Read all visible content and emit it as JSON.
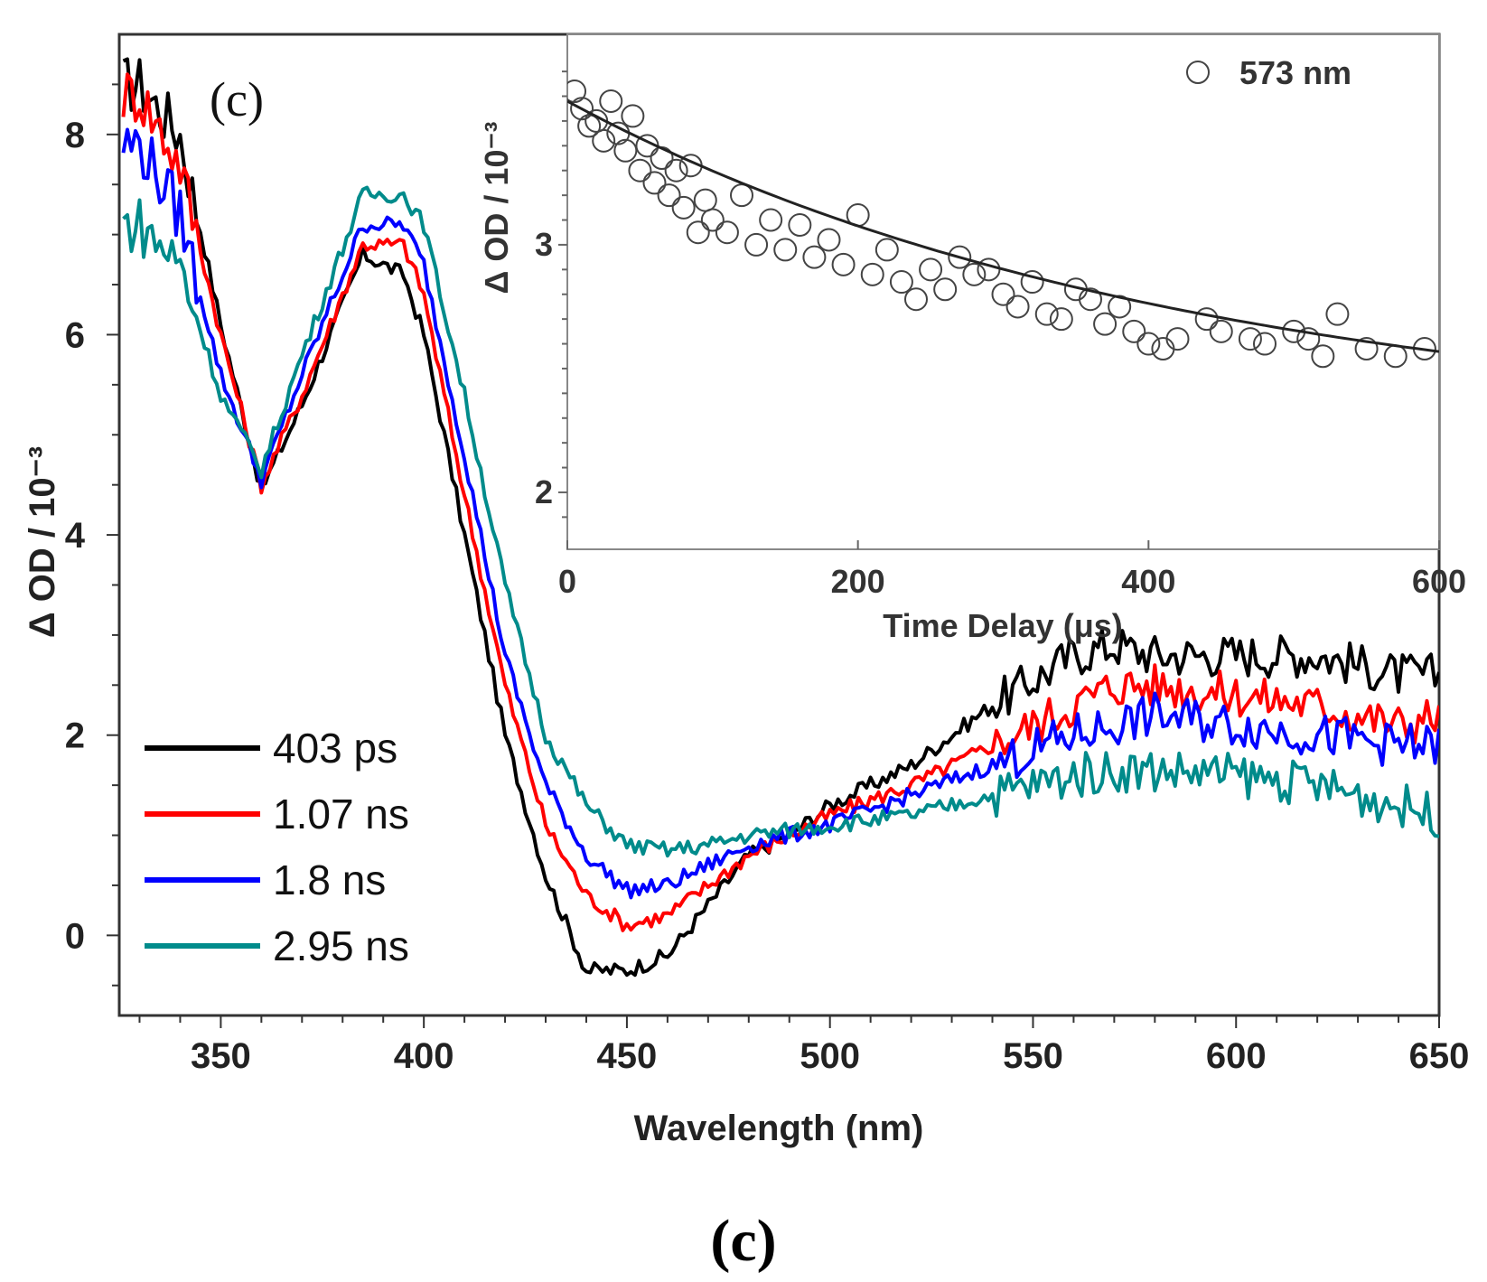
{
  "panel_label": "(c)",
  "caption": "(c)",
  "colors": {
    "403 ps": "#000000",
    "1.07 ns": "#ff0000",
    "1.8 ns": "#0000ff",
    "2.95 ns": "#008b8b",
    "fit": "#222222",
    "markers": "#444444"
  },
  "chart_data": [
    {
      "type": "line",
      "title": "",
      "xlabel": "Wavelength (nm)",
      "ylabel": "Δ OD / 10⁻³",
      "xlim": [
        325,
        650
      ],
      "ylim": [
        -0.8,
        9
      ],
      "xticks": [
        350,
        400,
        450,
        500,
        550,
        600,
        650
      ],
      "yticks": [
        0,
        2,
        4,
        6,
        8
      ],
      "x": [
        330,
        340,
        350,
        360,
        370,
        385,
        395,
        400,
        410,
        420,
        430,
        440,
        450,
        460,
        470,
        480,
        490,
        500,
        520,
        540,
        560,
        570,
        580,
        600,
        620,
        640,
        650
      ],
      "series": [
        {
          "name": "403 ps",
          "values": [
            8.5,
            8.0,
            6.1,
            4.45,
            5.3,
            6.8,
            6.6,
            6.0,
            4.0,
            2.0,
            0.6,
            -0.35,
            -0.35,
            -0.2,
            0.3,
            0.8,
            1.0,
            1.3,
            1.7,
            2.3,
            2.8,
            2.9,
            2.8,
            2.8,
            2.8,
            2.6,
            2.6
          ]
        },
        {
          "name": "1.07 ns",
          "values": [
            8.4,
            7.7,
            6.0,
            4.5,
            5.4,
            6.9,
            6.9,
            6.4,
            4.4,
            2.5,
            1.1,
            0.4,
            0.1,
            0.2,
            0.5,
            0.8,
            1.0,
            1.2,
            1.5,
            1.9,
            2.3,
            2.5,
            2.5,
            2.4,
            2.3,
            2.1,
            2.2
          ]
        },
        {
          "name": "1.8 ns",
          "values": [
            7.9,
            7.2,
            5.6,
            4.55,
            5.6,
            7.1,
            7.1,
            6.7,
            4.8,
            2.8,
            1.5,
            0.8,
            0.45,
            0.5,
            0.7,
            0.9,
            1.0,
            1.1,
            1.4,
            1.7,
            2.0,
            2.1,
            2.2,
            2.1,
            2.0,
            1.9,
            1.9
          ]
        },
        {
          "name": "2.95 ns",
          "values": [
            7.1,
            6.7,
            5.4,
            4.65,
            5.8,
            7.4,
            7.4,
            7.1,
            5.4,
            3.5,
            2.0,
            1.3,
            0.9,
            0.85,
            0.9,
            1.0,
            1.05,
            1.1,
            1.2,
            1.4,
            1.6,
            1.65,
            1.65,
            1.6,
            1.5,
            1.3,
            1.2
          ]
        }
      ],
      "legend": {
        "position": "bottom-left",
        "entries": [
          "403 ps",
          "1.07 ns",
          "1.8 ns",
          "2.95 ns"
        ]
      }
    },
    {
      "type": "scatter",
      "title": "",
      "xlabel": "Time Delay (μs)",
      "ylabel": "Δ OD / 10⁻³",
      "xlim": [
        0,
        600
      ],
      "ylim": [
        1.77,
        3.85
      ],
      "xticks": [
        0,
        200,
        400,
        600
      ],
      "yticks": [
        2,
        3
      ],
      "legend": {
        "position": "top-right",
        "entries": [
          "573 nm"
        ]
      },
      "points": [
        {
          "x": 5,
          "y": 3.62
        },
        {
          "x": 10,
          "y": 3.55
        },
        {
          "x": 15,
          "y": 3.48
        },
        {
          "x": 20,
          "y": 3.5
        },
        {
          "x": 25,
          "y": 3.42
        },
        {
          "x": 30,
          "y": 3.58
        },
        {
          "x": 35,
          "y": 3.45
        },
        {
          "x": 40,
          "y": 3.38
        },
        {
          "x": 45,
          "y": 3.52
        },
        {
          "x": 50,
          "y": 3.3
        },
        {
          "x": 55,
          "y": 3.4
        },
        {
          "x": 60,
          "y": 3.25
        },
        {
          "x": 65,
          "y": 3.35
        },
        {
          "x": 70,
          "y": 3.2
        },
        {
          "x": 75,
          "y": 3.3
        },
        {
          "x": 80,
          "y": 3.15
        },
        {
          "x": 85,
          "y": 3.32
        },
        {
          "x": 90,
          "y": 3.05
        },
        {
          "x": 95,
          "y": 3.18
        },
        {
          "x": 100,
          "y": 3.1
        },
        {
          "x": 110,
          "y": 3.05
        },
        {
          "x": 120,
          "y": 3.2
        },
        {
          "x": 130,
          "y": 3.0
        },
        {
          "x": 140,
          "y": 3.1
        },
        {
          "x": 150,
          "y": 2.98
        },
        {
          "x": 160,
          "y": 3.08
        },
        {
          "x": 170,
          "y": 2.95
        },
        {
          "x": 180,
          "y": 3.02
        },
        {
          "x": 190,
          "y": 2.92
        },
        {
          "x": 200,
          "y": 3.12
        },
        {
          "x": 210,
          "y": 2.88
        },
        {
          "x": 220,
          "y": 2.98
        },
        {
          "x": 230,
          "y": 2.85
        },
        {
          "x": 240,
          "y": 2.78
        },
        {
          "x": 250,
          "y": 2.9
        },
        {
          "x": 260,
          "y": 2.82
        },
        {
          "x": 270,
          "y": 2.95
        },
        {
          "x": 280,
          "y": 2.88
        },
        {
          "x": 290,
          "y": 2.9
        },
        {
          "x": 300,
          "y": 2.8
        },
        {
          "x": 310,
          "y": 2.75
        },
        {
          "x": 320,
          "y": 2.85
        },
        {
          "x": 330,
          "y": 2.72
        },
        {
          "x": 340,
          "y": 2.7
        },
        {
          "x": 350,
          "y": 2.82
        },
        {
          "x": 360,
          "y": 2.78
        },
        {
          "x": 370,
          "y": 2.68
        },
        {
          "x": 380,
          "y": 2.75
        },
        {
          "x": 390,
          "y": 2.65
        },
        {
          "x": 400,
          "y": 2.6
        },
        {
          "x": 410,
          "y": 2.58
        },
        {
          "x": 420,
          "y": 2.62
        },
        {
          "x": 440,
          "y": 2.7
        },
        {
          "x": 450,
          "y": 2.65
        },
        {
          "x": 470,
          "y": 2.62
        },
        {
          "x": 480,
          "y": 2.6
        },
        {
          "x": 500,
          "y": 2.65
        },
        {
          "x": 510,
          "y": 2.62
        },
        {
          "x": 520,
          "y": 2.55
        },
        {
          "x": 530,
          "y": 2.72
        },
        {
          "x": 550,
          "y": 2.58
        },
        {
          "x": 570,
          "y": 2.55
        },
        {
          "x": 590,
          "y": 2.58
        }
      ],
      "fit": {
        "type": "exponential",
        "equation": "y = 2.25 + 1.33·exp(-x/420)"
      }
    }
  ]
}
